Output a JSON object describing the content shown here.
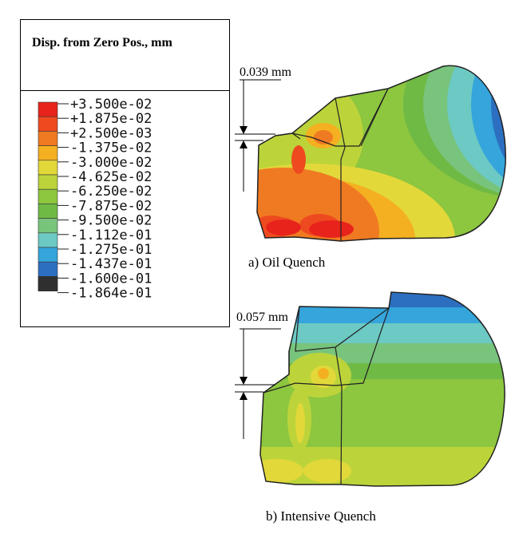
{
  "legend": {
    "title": "Disp. from Zero Pos., mm",
    "entries": [
      {
        "value": "+3.500e-02",
        "color": "#e8231c"
      },
      {
        "value": "+1.875e-02",
        "color": "#ee4a1f"
      },
      {
        "value": "+2.500e-03",
        "color": "#f07a22"
      },
      {
        "value": "-1.375e-02",
        "color": "#f4b020"
      },
      {
        "value": "-3.000e-02",
        "color": "#e2d83a"
      },
      {
        "value": "-4.625e-02",
        "color": "#bcd43a"
      },
      {
        "value": "-6.250e-02",
        "color": "#8dc63f"
      },
      {
        "value": "-7.875e-02",
        "color": "#6fba45"
      },
      {
        "value": "-9.500e-02",
        "color": "#78c47c"
      },
      {
        "value": "-1.112e-01",
        "color": "#6cc9c3"
      },
      {
        "value": "-1.275e-01",
        "color": "#35a5db"
      },
      {
        "value": "-1.437e-01",
        "color": "#2c6fc1"
      },
      {
        "value": "-1.600e-01",
        "color": "#26409e"
      },
      {
        "value": "-1.864e-01",
        "color": "#2f2f2f"
      }
    ]
  },
  "panels": {
    "oil": {
      "caption": "a) Oil Quench",
      "measurement": "0.039 mm"
    },
    "intensive": {
      "caption": "b) Intensive Quench",
      "measurement": "0.057 mm"
    }
  }
}
